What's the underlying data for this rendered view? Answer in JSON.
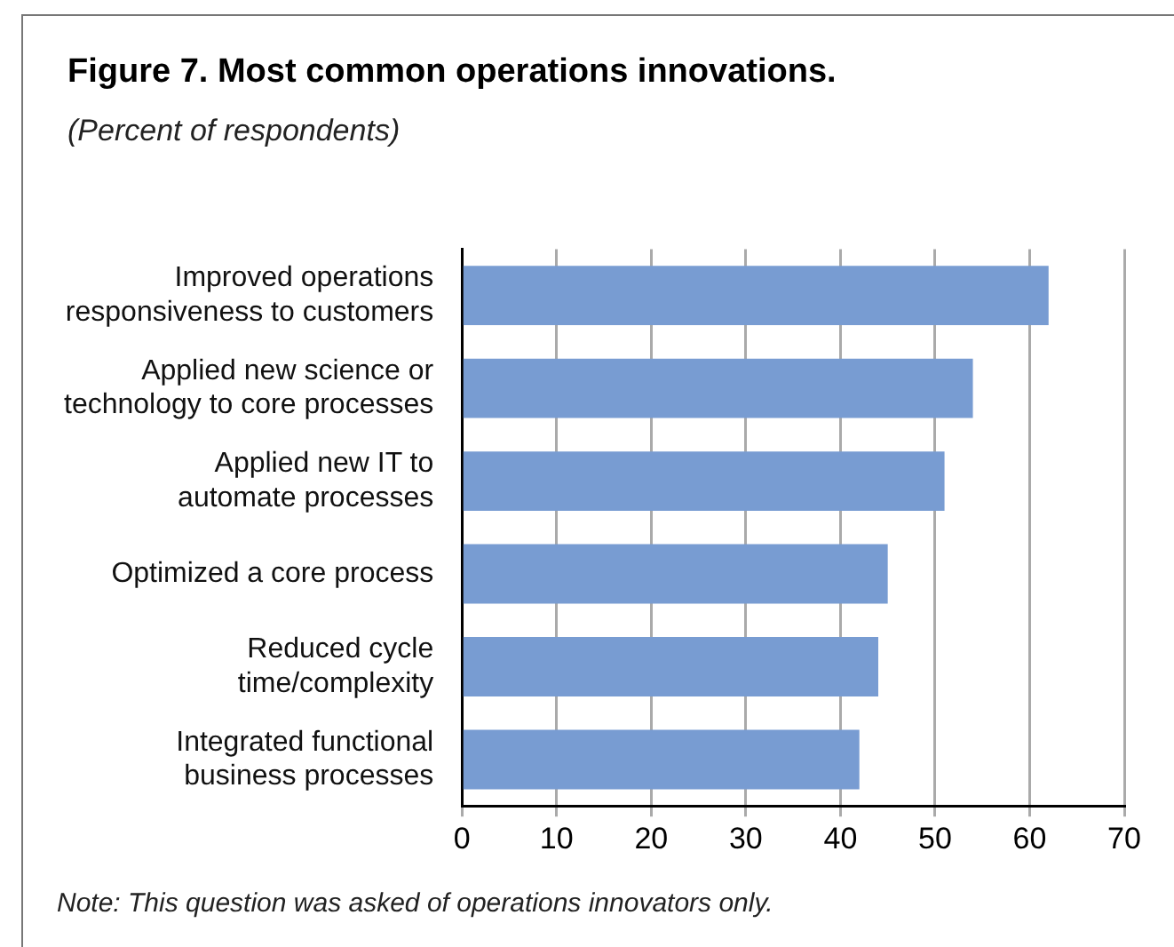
{
  "chart_data": {
    "type": "bar",
    "orientation": "horizontal",
    "title": "Figure 7. Most common operations innovations.",
    "subtitle": "(Percent of respondents)",
    "categories": [
      "Improved operations\nresponsiveness to customers",
      "Applied new science or\ntechnology to core processes",
      "Applied new IT to\nautomate processes",
      "Optimized a core process",
      "Reduced cycle\ntime/complexity",
      "Integrated functional\nbusiness processes"
    ],
    "values": [
      62,
      54,
      51,
      45,
      44,
      42
    ],
    "color": "#789cd2",
    "xlim": [
      0,
      70
    ],
    "xticks": [
      0,
      10,
      20,
      30,
      40,
      50,
      60,
      70
    ],
    "grid": "x",
    "legend": false,
    "annotations": [
      "Note: This question was asked of operations innovators only."
    ]
  }
}
